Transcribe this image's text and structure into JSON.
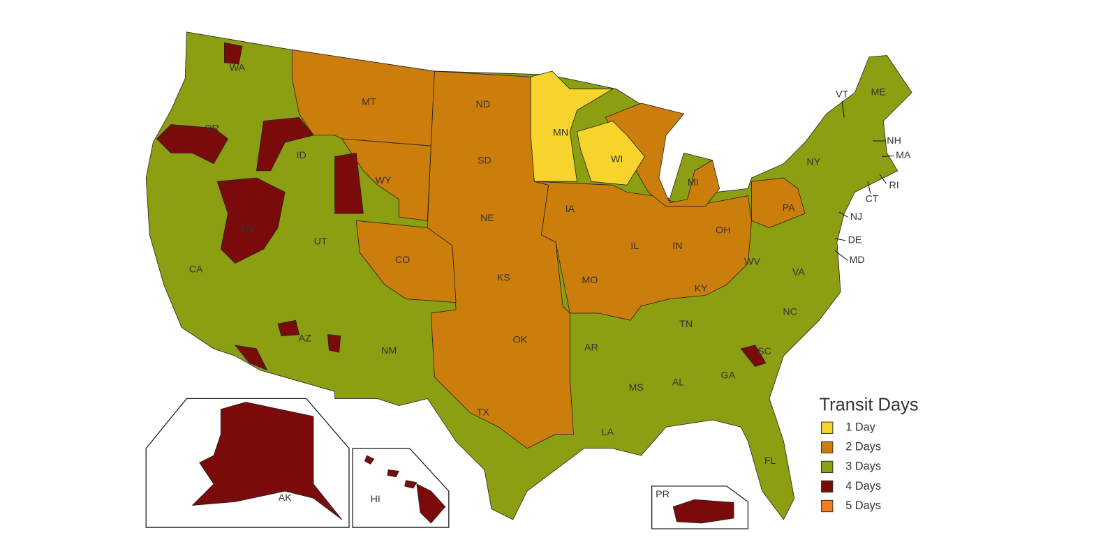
{
  "map": {
    "labels": [
      "WA",
      "OR",
      "CA",
      "NV",
      "ID",
      "MT",
      "WY",
      "UT",
      "CO",
      "AZ",
      "NM",
      "ND",
      "SD",
      "NE",
      "KS",
      "OK",
      "TX",
      "MN",
      "IA",
      "MO",
      "AR",
      "LA",
      "WI",
      "IL",
      "MS",
      "MI",
      "IN",
      "KY",
      "TN",
      "AL",
      "GA",
      "OH",
      "WV",
      "VA",
      "NC",
      "SC",
      "FL",
      "PA",
      "NY",
      "VT",
      "ME",
      "NH",
      "MA",
      "RI",
      "CT",
      "NJ",
      "DE",
      "MD",
      "AK",
      "HI",
      "PR"
    ],
    "legend": {
      "title": "Transit Days",
      "items": [
        {
          "label": "1 Day",
          "color": "#f7d42b"
        },
        {
          "label": "2 Days",
          "color": "#cc7e0c"
        },
        {
          "label": "3 Days",
          "color": "#8c9e12"
        },
        {
          "label": "4 Days",
          "color": "#7b0b0b"
        },
        {
          "label": "5 Days",
          "color": "#f2801e"
        }
      ]
    }
  }
}
